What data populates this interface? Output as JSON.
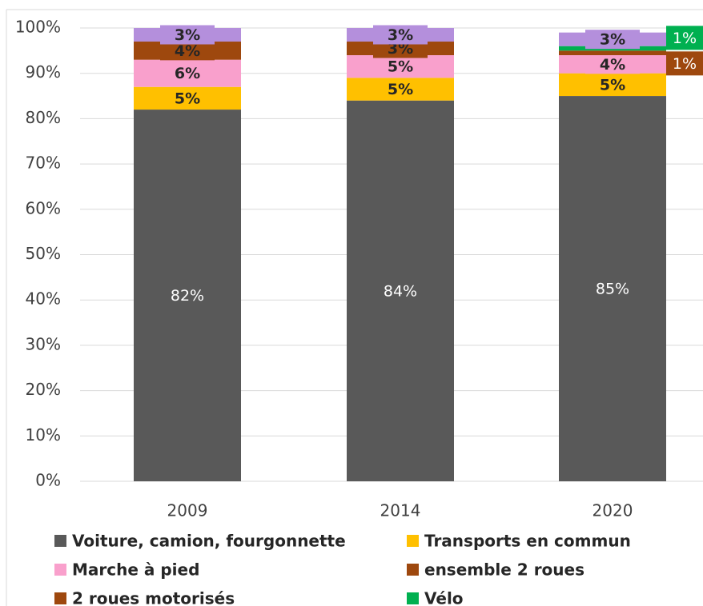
{
  "chart_data": {
    "type": "stacked_bar",
    "categories": [
      "2009",
      "2014",
      "2020"
    ],
    "series": [
      {
        "name": "Voiture, camion, fourgonnette",
        "color": "#595959",
        "values": [
          82,
          84,
          85
        ],
        "value_labels": [
          "82%",
          "84%",
          "85%"
        ]
      },
      {
        "name": "Transports en commun",
        "color": "#ffc000",
        "values": [
          5,
          5,
          5
        ],
        "value_labels": [
          "5%",
          "5%",
          "5%"
        ]
      },
      {
        "name": "Marche à pied",
        "color": "#f9a0cc",
        "values": [
          6,
          5,
          4
        ],
        "value_labels": [
          "6%",
          "5%",
          "4%"
        ]
      },
      {
        "name": "ensemble 2 roues",
        "color": "#9e480e",
        "values": [
          4,
          3,
          null
        ],
        "value_labels": [
          "4%",
          "3%",
          null
        ]
      },
      {
        "name": "2 roues motorisés",
        "color": "#9e480e",
        "values": [
          null,
          null,
          1
        ],
        "value_labels": [
          null,
          null,
          "1%"
        ]
      },
      {
        "name": "Vélo",
        "color": "#00b050",
        "values": [
          null,
          null,
          1
        ],
        "value_labels": [
          null,
          null,
          "1%"
        ]
      },
      {
        "color": "#b48fdc",
        "values": [
          3,
          3,
          3
        ],
        "value_labels": [
          "3%",
          "3%",
          "3%"
        ]
      }
    ],
    "ylim": [
      0,
      100
    ],
    "yticks": [
      {
        "value": 0,
        "label": "0%"
      },
      {
        "value": 10,
        "label": "10%"
      },
      {
        "value": 20,
        "label": "20%"
      },
      {
        "value": 30,
        "label": "30%"
      },
      {
        "value": 40,
        "label": "40%"
      },
      {
        "value": 50,
        "label": "50%"
      },
      {
        "value": 60,
        "label": "60%"
      },
      {
        "value": 70,
        "label": "70%"
      },
      {
        "value": 80,
        "label": "80%"
      },
      {
        "value": 90,
        "label": "90%"
      },
      {
        "value": 100,
        "label": "100%"
      }
    ],
    "grid": true
  }
}
